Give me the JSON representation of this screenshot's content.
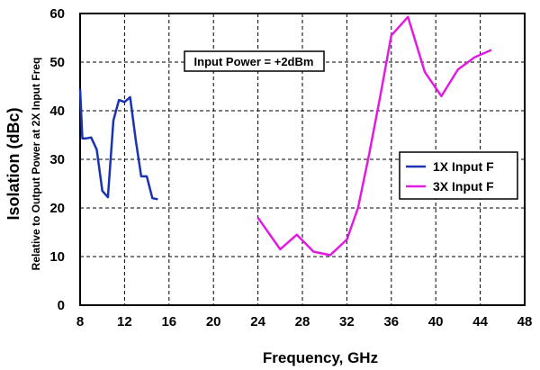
{
  "chart_data": {
    "type": "line",
    "xlabel": "Frequency, GHz",
    "ylabel": "Isolation (dBc)",
    "ylabel_sub": "Relative to Output Power at 2X Input Freq",
    "annotation": "Input Power = +2dBm",
    "xlim": [
      8,
      48
    ],
    "ylim": [
      0,
      60
    ],
    "xticks": [
      8,
      12,
      16,
      20,
      24,
      28,
      32,
      36,
      40,
      44,
      48
    ],
    "yticks": [
      0,
      10,
      20,
      30,
      40,
      50,
      60
    ],
    "grid": true,
    "grid_style": "dashed",
    "legend_position": "right",
    "series": [
      {
        "name": "1X Input F",
        "color": "#1a33b3",
        "x": [
          8.0,
          8.2,
          8.5,
          9.0,
          9.5,
          10.0,
          10.5,
          11.0,
          11.5,
          12.0,
          12.5,
          13.0,
          13.5,
          14.0,
          14.5,
          15.0
        ],
        "y": [
          44.5,
          34.3,
          34.3,
          34.5,
          32.0,
          23.5,
          22.2,
          38.0,
          42.2,
          41.8,
          42.8,
          34.0,
          26.5,
          26.5,
          22.0,
          21.8
        ]
      },
      {
        "name": "3X Input F",
        "color": "#e21be0",
        "x": [
          24,
          26,
          27.5,
          29,
          30.5,
          32,
          33,
          34,
          35,
          36,
          37.5,
          39,
          40.5,
          42,
          43.5,
          45
        ],
        "y": [
          18.0,
          11.5,
          14.5,
          11.0,
          10.3,
          13.5,
          20.0,
          31.0,
          43.0,
          55.5,
          59.3,
          48.0,
          43.0,
          48.5,
          51.0,
          52.5
        ]
      }
    ]
  }
}
